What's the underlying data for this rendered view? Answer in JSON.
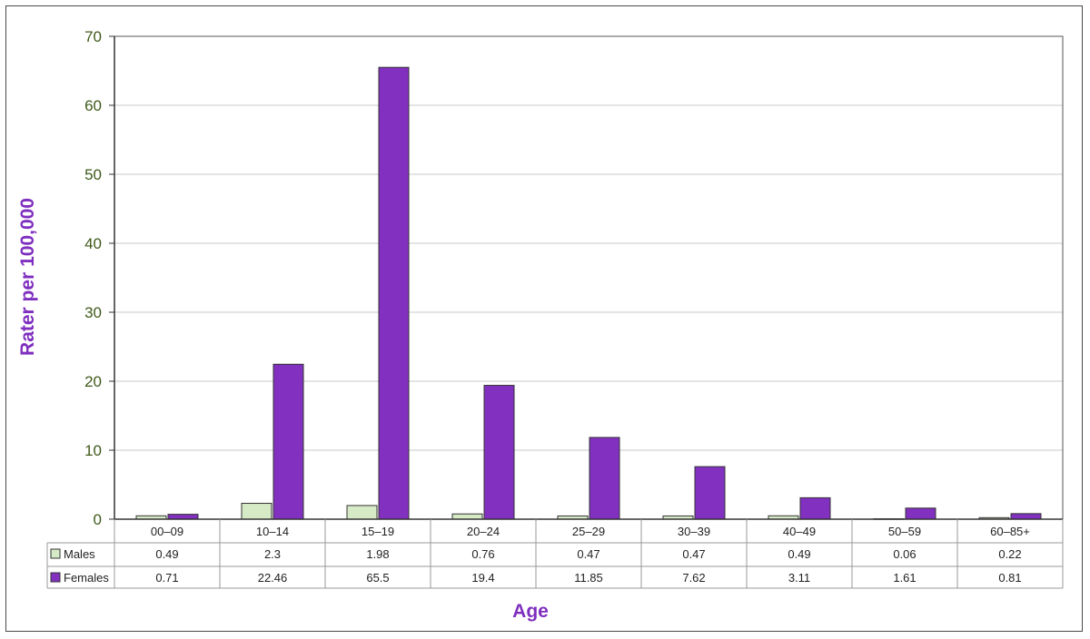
{
  "chart_data": {
    "type": "bar",
    "categories": [
      "00–09",
      "10–14",
      "15–19",
      "20–24",
      "25–29",
      "30–39",
      "40–49",
      "50–59",
      "60–85+"
    ],
    "series": [
      {
        "name": "Males",
        "values": [
          0.49,
          2.3,
          1.98,
          0.76,
          0.47,
          0.47,
          0.49,
          0.06,
          0.22
        ],
        "color": "#d6eac6"
      },
      {
        "name": "Females",
        "values": [
          0.71,
          22.46,
          65.5,
          19.4,
          11.85,
          7.62,
          3.11,
          1.61,
          0.81
        ],
        "color": "#8230bf"
      }
    ],
    "table_values": {
      "Males": [
        "0.49",
        "2.3",
        "1.98",
        "0.76",
        "0.47",
        "0.47",
        "0.49",
        "0.06",
        "0.22"
      ],
      "Females": [
        "0.71",
        "22.46",
        "65.5",
        "19.4",
        "11.85",
        "7.62",
        "3.11",
        "1.61",
        "0.81"
      ]
    },
    "xlabel": "Age",
    "ylabel": "Rater per 100,000",
    "ylim": [
      0,
      70
    ],
    "yticks": [
      0,
      10,
      20,
      30,
      40,
      50,
      60,
      70
    ],
    "grid": true,
    "legend": "data-table",
    "axis_title_color": "#7f2fbf",
    "tick_color": "#3f5a1a",
    "grid_color": "#c8c8c8"
  }
}
